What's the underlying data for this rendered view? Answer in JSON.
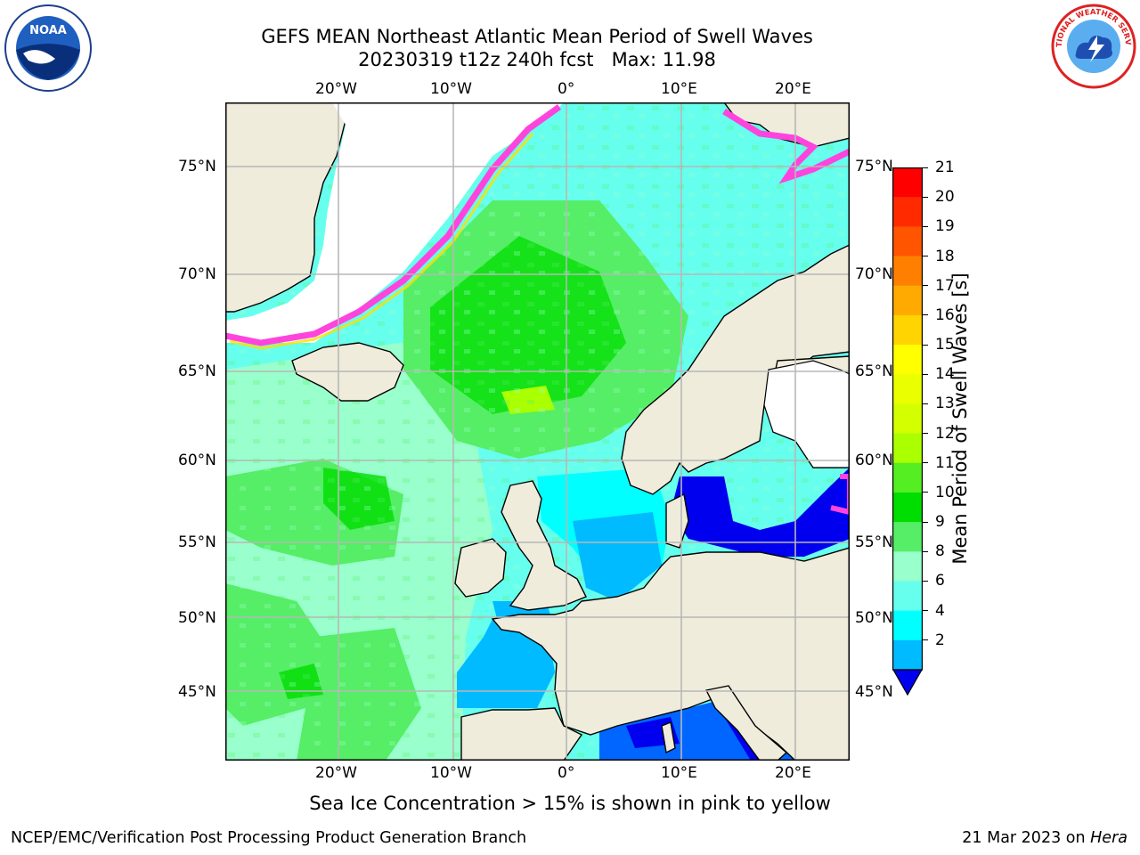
{
  "title_line1": "GEFS MEAN Northeast Atlantic Mean Period of Swell Waves",
  "title_line2": "20230319 t12z 240h fcst   Max: 11.98",
  "lon_labels": [
    "20°W",
    "10°W",
    "0°",
    "10°E",
    "20°E"
  ],
  "lat_labels": [
    "75°N",
    "70°N",
    "65°N",
    "60°N",
    "55°N",
    "50°N",
    "45°N"
  ],
  "colorbar": {
    "label": "Mean Period of Swell Waves [s]",
    "ticks": [
      "21",
      "20",
      "19",
      "18",
      "17",
      "16",
      "15",
      "14",
      "13",
      "12",
      "11",
      "10",
      "9",
      "8",
      "6",
      "4",
      "2"
    ],
    "colors": [
      "#ff0000",
      "#ff2a00",
      "#ff5500",
      "#ff8000",
      "#ffaa00",
      "#ffd400",
      "#ffff00",
      "#eaff00",
      "#d4ff00",
      "#aaff00",
      "#55ee22",
      "#00dd00",
      "#55ee66",
      "#99ffcc",
      "#66ffee",
      "#00ffff",
      "#00bbff",
      "#0066ff"
    ]
  },
  "subtitle": "Sea Ice Concentration > 15% is shown in pink to yellow",
  "footer_left": "NCEP/EMC/Verification Post Processing Product Generation Branch",
  "footer_right_date": "21 Mar 2023 on ",
  "footer_right_host": "Hera",
  "logos": {
    "noaa_text": "NOAA",
    "nws_text": "NATIONAL WEATHER SERVICE"
  }
}
